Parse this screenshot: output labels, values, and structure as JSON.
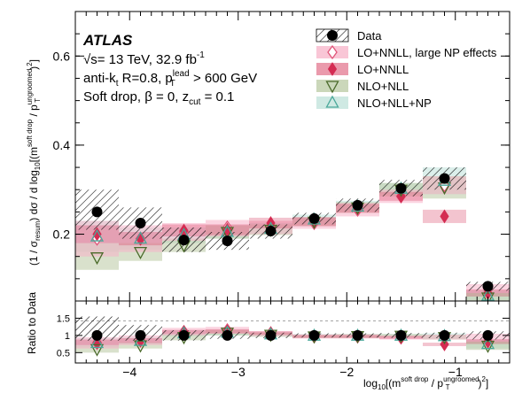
{
  "chart_data": {
    "type": "scatter",
    "experiment": "ATLAS",
    "info_lines": {
      "energy": "√s= 13 TeV, 32.9 fb",
      "energy_sup": "-1",
      "jets_a": "anti-k",
      "jets_a_sub": "t",
      "jets_b": " R=0.8, p",
      "jets_b_sup": "lead",
      "jets_b_sub": "T",
      "jets_c": " > 600 GeV",
      "softdrop_a": "Soft drop, β = 0, z",
      "softdrop_sub": "cut",
      "softdrop_b": " = 0.1"
    },
    "ylabel_main": "(1 / σresum) dσ / d log10[(msoft drop / pTungroomed)2]",
    "ylabel_ratio": "Ratio to Data",
    "xlabel": "log10[(msoft drop / pTungroomed)2]",
    "x_range": [
      -4.5,
      -0.5
    ],
    "ylim_main": [
      0.05,
      0.7
    ],
    "ylim_ratio": [
      0.2,
      2.0
    ],
    "x_ticks": [
      {
        "value": -4,
        "label": "−4"
      },
      {
        "value": -3,
        "label": "−3"
      },
      {
        "value": -2,
        "label": "−2"
      },
      {
        "value": -1,
        "label": "−1"
      }
    ],
    "y_ticks_main": [
      {
        "value": 0.2,
        "label": "0.2"
      },
      {
        "value": 0.4,
        "label": "0.4"
      },
      {
        "value": 0.6,
        "label": "0.6"
      }
    ],
    "y_ticks_ratio": [
      {
        "value": 0.5,
        "label": "0.5"
      },
      {
        "value": 1.0,
        "label": "1"
      },
      {
        "value": 1.5,
        "label": "1.5"
      }
    ],
    "bins": [
      [
        -4.5,
        -4.1
      ],
      [
        -4.1,
        -3.7
      ],
      [
        -3.7,
        -3.3
      ],
      [
        -3.3,
        -2.9
      ],
      [
        -2.9,
        -2.5
      ],
      [
        -2.5,
        -2.1
      ],
      [
        -2.1,
        -1.7
      ],
      [
        -1.7,
        -1.3
      ],
      [
        -1.3,
        -0.9
      ],
      [
        -0.9,
        -0.5
      ]
    ],
    "legend_position": "top-right",
    "series": [
      {
        "name": "Data",
        "style": "data",
        "color": "#000000",
        "values": [
          0.25,
          0.225,
          0.187,
          0.185,
          0.207,
          0.235,
          0.265,
          0.303,
          0.325,
          0.083
        ],
        "band": [
          [
            0.21,
            0.3
          ],
          [
            0.19,
            0.26
          ],
          [
            0.16,
            0.215
          ],
          [
            0.165,
            0.205
          ],
          [
            0.19,
            0.222
          ],
          [
            0.222,
            0.248
          ],
          [
            0.25,
            0.28
          ],
          [
            0.285,
            0.322
          ],
          [
            0.3,
            0.35
          ],
          [
            0.073,
            0.093
          ]
        ],
        "ratio": [
          1.0,
          1.0,
          1.0,
          1.0,
          1.0,
          1.0,
          1.0,
          1.0,
          1.0,
          1.0
        ],
        "ratio_band": [
          [
            0.85,
            1.55
          ],
          [
            0.85,
            1.3
          ],
          [
            0.85,
            1.15
          ],
          [
            0.9,
            1.1
          ],
          [
            0.92,
            1.08
          ],
          [
            0.94,
            1.06
          ],
          [
            0.94,
            1.06
          ],
          [
            0.93,
            1.07
          ],
          [
            0.92,
            1.08
          ],
          [
            0.88,
            1.12
          ]
        ]
      },
      {
        "name": "LO+NNLL, large NP effects",
        "style": "open-diamond",
        "color": "#e0567a",
        "fill": "#f7b3c8",
        "values": [
          0.19,
          0.19,
          0.205,
          0.215,
          0.215,
          0.225,
          0.255,
          0.285,
          0.31,
          0.078
        ],
        "band": [
          [
            0.15,
            0.23
          ],
          [
            0.16,
            0.22
          ],
          [
            0.185,
            0.225
          ],
          [
            0.195,
            0.232
          ],
          [
            0.2,
            0.23
          ],
          [
            0.212,
            0.238
          ],
          [
            0.24,
            0.27
          ],
          [
            0.27,
            0.3
          ],
          [
            0.29,
            0.33
          ],
          [
            0.068,
            0.088
          ]
        ],
        "ratio": [
          0.78,
          0.85,
          1.1,
          1.15,
          1.05,
          0.97,
          0.97,
          0.94,
          0.95,
          0.94
        ],
        "ratio_band": [
          [
            0.62,
            0.95
          ],
          [
            0.72,
            1.0
          ],
          [
            1.0,
            1.22
          ],
          [
            1.05,
            1.25
          ],
          [
            0.98,
            1.12
          ],
          [
            0.91,
            1.03
          ],
          [
            0.91,
            1.03
          ],
          [
            0.88,
            1.0
          ],
          [
            0.88,
            1.02
          ],
          [
            0.82,
            1.05
          ]
        ]
      },
      {
        "name": "LO+NNLL",
        "style": "filled-diamond",
        "color": "#d42c52",
        "values": [
          0.2,
          0.19,
          0.208,
          0.21,
          0.225,
          0.228,
          0.258,
          0.285,
          0.24,
          0.068
        ],
        "band": [
          [
            0.18,
            0.22
          ],
          [
            0.175,
            0.205
          ],
          [
            0.195,
            0.222
          ],
          [
            0.198,
            0.222
          ],
          [
            0.213,
            0.237
          ],
          [
            0.218,
            0.238
          ],
          [
            0.248,
            0.268
          ],
          [
            0.275,
            0.295
          ],
          [
            0.225,
            0.255
          ],
          [
            0.06,
            0.076
          ]
        ],
        "ratio": [
          0.8,
          0.85,
          1.1,
          1.12,
          1.07,
          0.97,
          0.97,
          0.94,
          0.74,
          0.82
        ],
        "ratio_band": [
          [
            0.72,
            0.88
          ],
          [
            0.78,
            0.92
          ],
          [
            1.04,
            1.16
          ],
          [
            1.06,
            1.18
          ],
          [
            1.02,
            1.12
          ],
          [
            0.93,
            1.01
          ],
          [
            0.93,
            1.01
          ],
          [
            0.9,
            0.98
          ],
          [
            0.69,
            0.79
          ],
          [
            0.75,
            0.89
          ]
        ]
      },
      {
        "name": "NLO+NLL",
        "style": "open-triangle-down",
        "color": "#4a6a2a",
        "fill": "#b9c9a3",
        "values": [
          0.148,
          0.16,
          0.175,
          0.205,
          0.21,
          0.228,
          0.26,
          0.3,
          0.305,
          0.058
        ],
        "band": [
          [
            0.12,
            0.18
          ],
          [
            0.14,
            0.18
          ],
          [
            0.16,
            0.19
          ],
          [
            0.19,
            0.22
          ],
          [
            0.198,
            0.222
          ],
          [
            0.218,
            0.238
          ],
          [
            0.248,
            0.272
          ],
          [
            0.285,
            0.315
          ],
          [
            0.28,
            0.33
          ],
          [
            0.048,
            0.068
          ]
        ],
        "ratio": [
          0.6,
          0.71,
          0.95,
          1.08,
          1.02,
          0.97,
          0.98,
          0.99,
          0.95,
          0.7
        ],
        "ratio_band": [
          [
            0.5,
            0.72
          ],
          [
            0.62,
            0.8
          ],
          [
            0.86,
            1.04
          ],
          [
            1.0,
            1.16
          ],
          [
            0.96,
            1.08
          ],
          [
            0.92,
            1.02
          ],
          [
            0.92,
            1.04
          ],
          [
            0.94,
            1.04
          ],
          [
            0.88,
            1.02
          ],
          [
            0.58,
            0.82
          ]
        ]
      },
      {
        "name": "NLO+NLL+NP",
        "style": "open-triangle-up",
        "color": "#4aa89a",
        "fill": "#bfe2da",
        "values": [
          0.195,
          0.19,
          0.198,
          0.205,
          0.212,
          0.233,
          0.262,
          0.302,
          0.32,
          0.062
        ],
        "band": [
          [
            0.16,
            0.23
          ],
          [
            0.165,
            0.215
          ],
          [
            0.18,
            0.215
          ],
          [
            0.19,
            0.22
          ],
          [
            0.2,
            0.225
          ],
          [
            0.222,
            0.244
          ],
          [
            0.25,
            0.275
          ],
          [
            0.29,
            0.315
          ],
          [
            0.29,
            0.35
          ],
          [
            0.052,
            0.074
          ]
        ],
        "ratio": [
          0.78,
          0.84,
          1.06,
          1.08,
          1.03,
          0.99,
          0.99,
          0.99,
          0.98,
          0.75
        ],
        "ratio_band": [
          [
            0.65,
            0.92
          ],
          [
            0.74,
            0.95
          ],
          [
            0.97,
            1.15
          ],
          [
            1.0,
            1.16
          ],
          [
            0.97,
            1.09
          ],
          [
            0.94,
            1.04
          ],
          [
            0.94,
            1.04
          ],
          [
            0.95,
            1.04
          ],
          [
            0.9,
            1.06
          ],
          [
            0.62,
            0.88
          ]
        ]
      }
    ]
  }
}
